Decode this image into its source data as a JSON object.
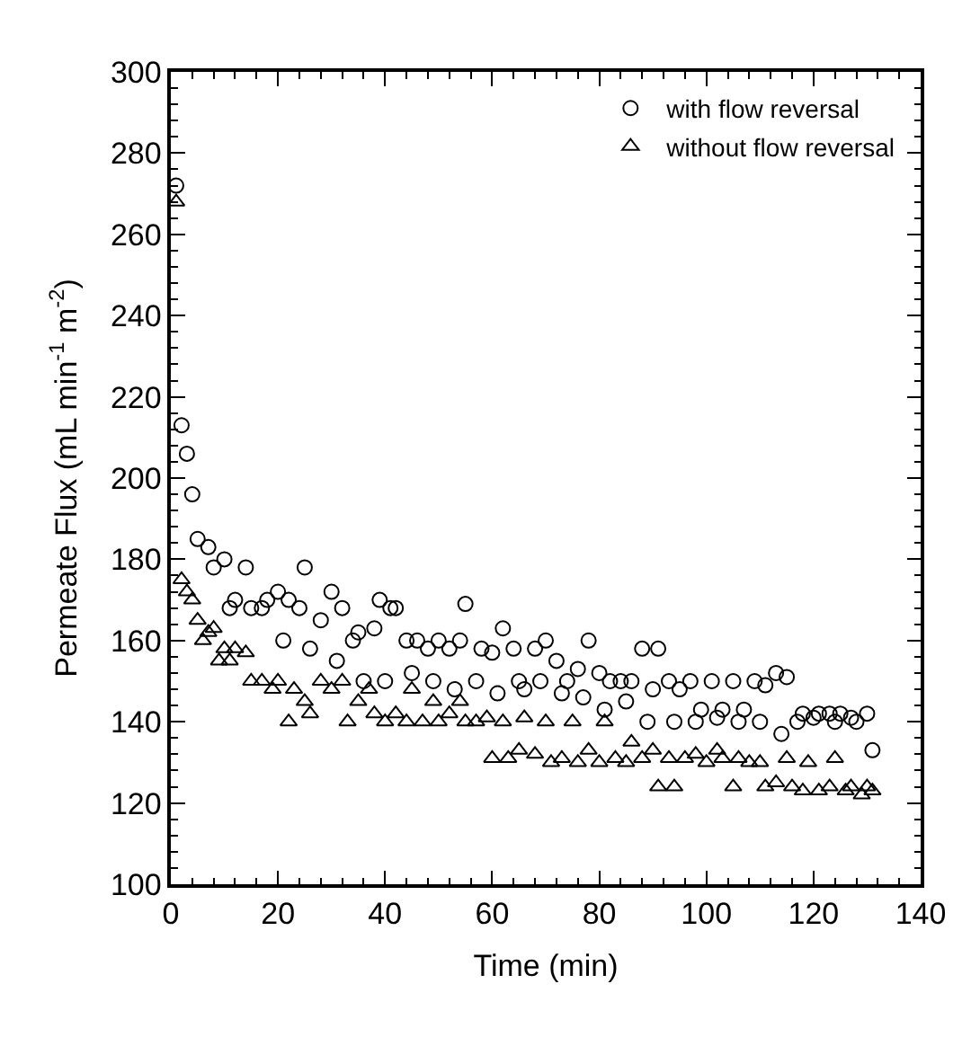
{
  "chart_data": {
    "type": "scatter",
    "xlabel": "Time (min)",
    "ylabel": "Permeate Flux (mL min$^{-1}$ m$^{-2}$)",
    "xlim": [
      0,
      140
    ],
    "xticks": [
      0,
      20,
      40,
      60,
      80,
      100,
      120,
      140
    ],
    "ylim": [
      100,
      300
    ],
    "yticks": [
      100,
      120,
      140,
      160,
      180,
      200,
      220,
      240,
      260,
      280,
      300
    ],
    "grid": false,
    "legend": "top right",
    "series": [
      {
        "name": "with flow reversal",
        "color": "#000000",
        "marker": "circle",
        "x": [
          1,
          2,
          3,
          4,
          5,
          7,
          8,
          10,
          11,
          12,
          14,
          15,
          17,
          18,
          20,
          21,
          22,
          24,
          25,
          26,
          28,
          30,
          31,
          32,
          34,
          35,
          36,
          38,
          39,
          40,
          41,
          42,
          44,
          45,
          46,
          48,
          49,
          50,
          52,
          53,
          54,
          55,
          57,
          58,
          60,
          61,
          62,
          64,
          65,
          66,
          68,
          69,
          70,
          72,
          73,
          74,
          76,
          77,
          78,
          80,
          81,
          82,
          84,
          85,
          86,
          88,
          89,
          90,
          91,
          93,
          94,
          95,
          97,
          98,
          99,
          101,
          102,
          103,
          105,
          106,
          107,
          109,
          110,
          111,
          113,
          114,
          115,
          117,
          118,
          120,
          121,
          123,
          124,
          125,
          127,
          128,
          130,
          131
        ],
        "values": [
          272,
          213,
          206,
          196,
          185,
          183,
          178,
          180,
          168,
          170,
          178,
          168,
          168,
          170,
          172,
          160,
          170,
          168,
          178,
          158,
          165,
          172,
          155,
          168,
          160,
          162,
          150,
          163,
          170,
          150,
          168,
          168,
          160,
          152,
          160,
          158,
          150,
          160,
          158,
          148,
          160,
          169,
          150,
          158,
          157,
          147,
          163,
          158,
          150,
          148,
          158,
          150,
          160,
          155,
          147,
          150,
          153,
          146,
          160,
          152,
          143,
          150,
          150,
          145,
          150,
          158,
          140,
          148,
          158,
          150,
          140,
          148,
          150,
          140,
          143,
          150,
          141,
          143,
          150,
          140,
          143,
          150,
          140,
          149,
          152,
          137,
          151,
          140,
          142,
          141,
          142,
          142,
          140,
          142,
          141,
          140,
          142,
          133
        ]
      },
      {
        "name": "without flow reversal",
        "color": "#000000",
        "marker": "triangle",
        "x": [
          1,
          2,
          3,
          4,
          5,
          6,
          7,
          8,
          9,
          10,
          11,
          12,
          14,
          15,
          17,
          19,
          20,
          22,
          23,
          25,
          26,
          28,
          30,
          32,
          33,
          35,
          37,
          38,
          40,
          42,
          44,
          45,
          47,
          49,
          50,
          52,
          54,
          55,
          57,
          59,
          60,
          62,
          63,
          65,
          66,
          68,
          70,
          71,
          73,
          75,
          76,
          78,
          80,
          81,
          83,
          85,
          86,
          88,
          90,
          91,
          93,
          94,
          96,
          98,
          100,
          102,
          103,
          105,
          106,
          108,
          110,
          111,
          113,
          115,
          116,
          118,
          119,
          121,
          123,
          124,
          126,
          127,
          129,
          130,
          131
        ],
        "values": [
          268,
          175,
          172,
          170,
          165,
          160,
          162,
          163,
          155,
          158,
          155,
          158,
          157,
          150,
          150,
          148,
          150,
          140,
          148,
          145,
          142,
          150,
          148,
          150,
          140,
          145,
          148,
          142,
          140,
          142,
          140,
          148,
          140,
          145,
          140,
          142,
          145,
          140,
          140,
          141,
          131,
          140,
          131,
          133,
          141,
          132,
          140,
          130,
          131,
          140,
          130,
          133,
          130,
          140,
          131,
          130,
          135,
          131,
          133,
          124,
          131,
          124,
          131,
          132,
          130,
          133,
          131,
          124,
          131,
          130,
          130,
          124,
          125,
          131,
          124,
          123,
          130,
          123,
          124,
          131,
          123,
          124,
          122,
          124,
          123
        ]
      }
    ]
  }
}
